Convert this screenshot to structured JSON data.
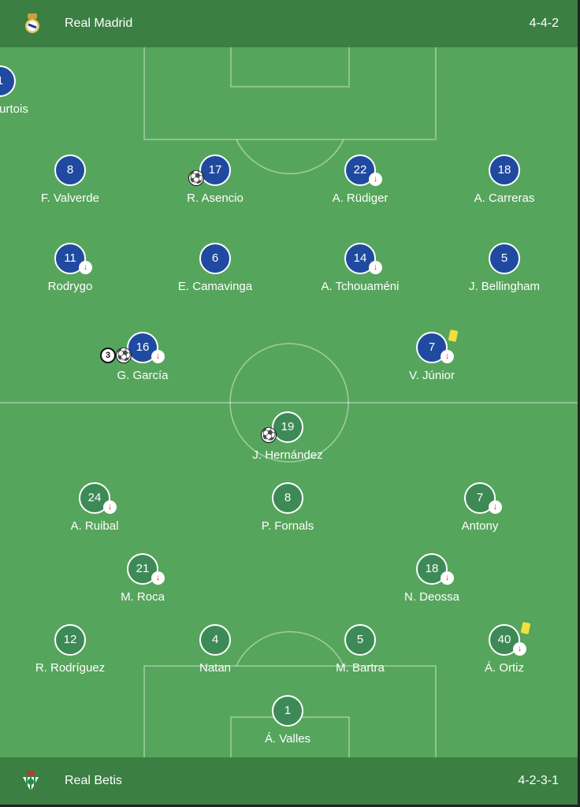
{
  "home": {
    "name": "Real Madrid",
    "formation": "4-4-2",
    "crest_icon": "real-madrid-crest",
    "color": "#1f4aa0",
    "players": [
      {
        "number": "1",
        "name": "T. Courtois",
        "row": 0,
        "col": 1,
        "cols": 1
      },
      {
        "number": "8",
        "name": "F. Valverde",
        "row": 1,
        "col": 0,
        "cols": 4
      },
      {
        "number": "17",
        "name": "R. Asencio",
        "row": 1,
        "col": 1,
        "cols": 4,
        "goal": true
      },
      {
        "number": "22",
        "name": "A. Rüdiger",
        "row": 1,
        "col": 2,
        "cols": 4,
        "subbed": true
      },
      {
        "number": "18",
        "name": "A. Carreras",
        "row": 1,
        "col": 3,
        "cols": 4
      },
      {
        "number": "11",
        "name": "Rodrygo",
        "row": 2,
        "col": 0,
        "cols": 4,
        "subbed": true
      },
      {
        "number": "6",
        "name": "E. Camavinga",
        "row": 2,
        "col": 1,
        "cols": 4
      },
      {
        "number": "14",
        "name": "A. Tchouaméni",
        "row": 2,
        "col": 2,
        "cols": 4,
        "subbed": true
      },
      {
        "number": "5",
        "name": "J. Bellingham",
        "row": 2,
        "col": 3,
        "cols": 4
      },
      {
        "number": "16",
        "name": "G. García",
        "row": 3,
        "col": 0,
        "cols": 2,
        "goal": true,
        "goals_count": "3",
        "subbed": true
      },
      {
        "number": "7",
        "name": "V. Júnior",
        "row": 3,
        "col": 1,
        "cols": 2,
        "subbed": true,
        "yellow_card": true
      }
    ]
  },
  "away": {
    "name": "Real Betis",
    "formation": "4-2-3-1",
    "crest_icon": "real-betis-crest",
    "color": "#3d8a56",
    "players": [
      {
        "number": "19",
        "name": "J. Hernández",
        "row": 0,
        "col": 0,
        "cols": 1,
        "goal": true
      },
      {
        "number": "24",
        "name": "A. Ruibal",
        "row": 1,
        "col": 0,
        "cols": 3,
        "subbed": true
      },
      {
        "number": "8",
        "name": "P. Fornals",
        "row": 1,
        "col": 1,
        "cols": 3
      },
      {
        "number": "7",
        "name": "Antony",
        "row": 1,
        "col": 2,
        "cols": 3,
        "subbed": true
      },
      {
        "number": "21",
        "name": "M. Roca",
        "row": 2,
        "col": 0,
        "cols": 2,
        "subbed": true
      },
      {
        "number": "18",
        "name": "N. Deossa",
        "row": 2,
        "col": 1,
        "cols": 2,
        "subbed": true
      },
      {
        "number": "12",
        "name": "R. Rodríguez",
        "row": 3,
        "col": 0,
        "cols": 4
      },
      {
        "number": "4",
        "name": "Natan",
        "row": 3,
        "col": 1,
        "cols": 4
      },
      {
        "number": "5",
        "name": "M. Bartra",
        "row": 3,
        "col": 2,
        "cols": 4
      },
      {
        "number": "40",
        "name": "Á. Ortiz",
        "row": 3,
        "col": 3,
        "cols": 4,
        "subbed": true,
        "yellow_card": true
      },
      {
        "number": "1",
        "name": "Á. Valles",
        "row": 4,
        "col": 0,
        "cols": 1
      }
    ]
  },
  "colors": {
    "header": "#3b7f42",
    "pitch": "#56a55c",
    "yellow_card": "#f3e03c",
    "sub_arrow": "#dd3322"
  },
  "icons": {
    "sub": "↓",
    "ball": "⚽"
  }
}
